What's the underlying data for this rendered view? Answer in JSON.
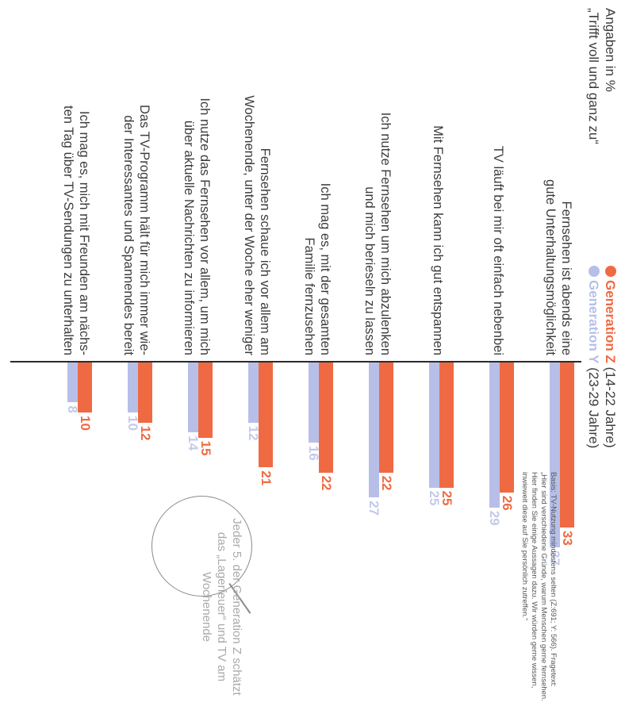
{
  "header": {
    "line1": "Angaben in %",
    "line2": "„Trifft voll und ganz zu“"
  },
  "legend": {
    "z_name": "Generation Z",
    "z_range": "(14-22 Jahre)",
    "y_name": "Generation Y",
    "y_range": "(23-29 Jahre)"
  },
  "colors": {
    "gen_z": "#ef6a43",
    "gen_y": "#b7bfe8",
    "axis": "#2b2b2b"
  },
  "chart_data": {
    "type": "bar",
    "orientation": "horizontal",
    "categories": [
      "Fernsehen ist abends eine gute Unterhaltungsmöglichkeit",
      "TV läuft bei mir oft einfach nebenbei",
      "Mit Fernsehen kann ich gut entspannen",
      "Ich nutze Fernsehen um mich abzulenken und mich berieseln zu lassen",
      "Ich mag es, mit der gesamten Familie fernzusehen",
      "Fernsehen schaue ich vor allem am Wochenende, unter der Woche eher weniger",
      "Ich nutze das Fernsehen vor allem, um mich über aktuelle Nachrichten zu informieren",
      "Das TV-Programm hält für mich immer wieder Interessantes und Spannendes bereit",
      "Ich mag es, mich mit Freunden am nächsten Tag über TV-Sendungen zu unterhalten"
    ],
    "label_lines": [
      [
        "Fernsehen ist abends eine",
        "gute Unterhaltungsmöglichkeit"
      ],
      [
        "TV läuft bei mir oft einfach nebenbei"
      ],
      [
        "Mit Fernsehen kann ich gut entspannen"
      ],
      [
        "Ich nutze Fernsehen um mich abzulenken",
        "und mich berieseln zu lassen"
      ],
      [
        "Ich mag es, mit der gesamten",
        "Familie fernzusehen"
      ],
      [
        "Fernsehen schaue ich vor allem am",
        "Wochenende, unter der Woche eher weniger"
      ],
      [
        "Ich nutze das Fernsehen vor allem, um mich",
        "über aktuelle Nachrichten zu informieren"
      ],
      [
        "Das TV-Programm hält für mich immer wie-",
        "der Interessantes und Spannendes bereit"
      ],
      [
        "Ich mag es, mich mit Freunden am nächs-",
        "ten Tag über TV-Sendungen zu unterhalten"
      ]
    ],
    "series": [
      {
        "name": "Generation Z",
        "values": [
          33,
          26,
          25,
          22,
          22,
          21,
          15,
          12,
          10
        ]
      },
      {
        "name": "Generation Y",
        "values": [
          37,
          29,
          25,
          27,
          16,
          12,
          14,
          10,
          8
        ]
      }
    ]
  },
  "callout": {
    "text": "Jeder 5. der Generation Z schätzt das „Lagerfeuer“ und TV am Wochenende"
  },
  "basis": {
    "text": "Basis: TV-Nutzung mindestens selten (Z:691; Y: 566). Fragetext: „Hier sind verschiedene Gründe, warum Menschen gerne fernsehen. Hier finden Sie einige Aussagen dazu. Wir würden gerne wissen, inwieweit diese auf Sie persönlich zutreffen.“"
  }
}
